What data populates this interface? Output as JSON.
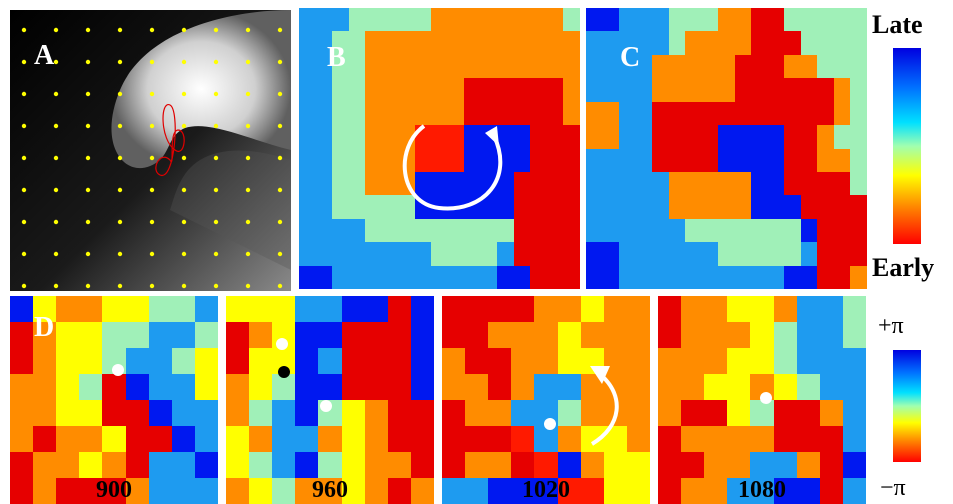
{
  "labels": {
    "a": "A",
    "b": "B",
    "c": "C",
    "d": "D"
  },
  "colorbar_activation": {
    "top": "Late",
    "bottom": "Early"
  },
  "colorbar_phase": {
    "top": "+π",
    "bottom": "−π"
  },
  "frames": [
    "900",
    "960",
    "1020",
    "1080"
  ],
  "palette": {
    "Y": "#ffff00",
    "Z": "#ff1a00",
    "O": "#ff8c00",
    "R": "#e60000",
    "M": "#a0f0b8",
    "S": "#1e9bf0",
    "N": "#0018f0",
    "K": "#0a0a0a"
  },
  "grid_b": [
    "SSSMMMMMOOOOOOOOM",
    "SSMMOOOOOOOOOOOOO",
    "SSMMOOOOOOOOOOOOO",
    "SSMMOOOOOORRRRRRO",
    "SSMMOOOOOORRRRRRO",
    "SSMMOOOZZZNNNNRRR",
    "SSMMOOOZZZNNNNRRR",
    "SSMMOOONNNNNNRRRR",
    "SSMMMMMNNNNNNRRRR",
    "SSSSMMMMMMMMMRRRR",
    "SSSSSSSSMMMMSRRRR",
    "NNSSSSSSSSSSNNRRR"
  ],
  "grid_c": [
    "NNSSSMMMMMMMMMMMM",
    "SSSSSMMMMMMMMMMMM",
    "SSSSSSSSSMMMMMMMM",
    "SSSSSMMMMMMMMMMMM",
    "SSSSSMMMMMMMMMMMM",
    "SSSSSSSMMMMMMMMMM",
    "SSSSSSSSSMMMMMMMM",
    "SSSSSSSSSSMMMMMMM",
    "SSSSSSSSSSSSSSMMM",
    "SSSSSSSSSSSSSSSMM",
    "NNSSSSSSSSSSSSSSS",
    "NNSSSSSSSSSSNNNSS"
  ],
  "grid_c_overlay": [
    "........OORR.....",
    "......OOOORRR....",
    "....OOOOORRROO...",
    "....OOOOORRRRRRO.",
    "OO..RRRRRRRRRRRO.",
    "OO..RRRRNNNNRRO..",
    "....RRRRNNNNRROO.",
    ".....OOOOONNRRRR.",
    ".....OOOOONNNRRRR",
    "......MMMMMMMNRRR",
    "........MMMMM.RRR",
    "............NNRRO"
  ],
  "phase_900": [
    "NYOOYYMMS",
    "ROYYMMSSM",
    "ROYYMSSMY",
    "OOYMRNSSY",
    "OOYYRRNSS",
    "OROOYRRNS",
    "ROOYORSSN",
    "RORRROSSS"
  ],
  "phase_960": [
    "YYYSSNNRN",
    "ROYNNRRRN",
    "RYYNSRRRN",
    "OYMNNRRRN",
    "OMSNMYORR",
    "YOSSOYORR",
    "YMSNMYOOR",
    "OYMOOYORO"
  ],
  "phase_1020": [
    "RRRROOYOO",
    "RROOOYOOO",
    "ORROOYYOO",
    "OOROSSOOO",
    "ROOSSMOOO",
    "RRRZSOYYO",
    "ROORZNOYY",
    "SSNNNZZYY"
  ],
  "phase_1080": [
    "ROOYYOSSM",
    "ROOOYMSSM",
    "OOOYYMSSS",
    "OOYYOYMSS",
    "ORRYMRROS",
    "ROOOORRRS",
    "RROOSSORN",
    "ROOSSNNRS"
  ],
  "colors": {
    "dot_yellow": "#ffff00",
    "trajectory": "#e00000",
    "arrow": "#ffffff",
    "marker_white": "#ffffff",
    "marker_black": "#000000"
  }
}
